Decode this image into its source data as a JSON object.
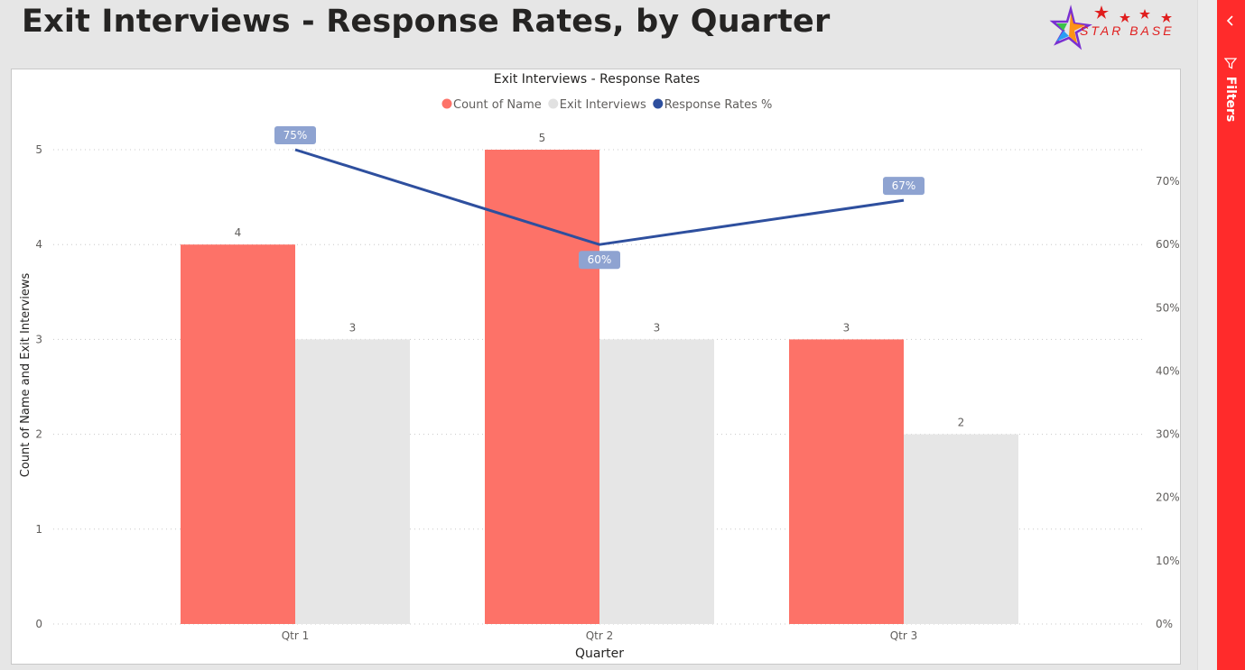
{
  "page": {
    "title": "Exit Interviews - Response Rates, by Quarter",
    "logo_text": "STAR BASE"
  },
  "filters_pane": {
    "label": "Filters",
    "collapse_icon": "chevron-left-icon",
    "filter_icon": "funnel-icon",
    "color": "#ff2b2b"
  },
  "chart_data": {
    "type": "bar",
    "title": "Exit Interviews - Response Rates",
    "xlabel": "Quarter",
    "ylabel": "Count of Name and Exit Interviews",
    "categories": [
      "Qtr 1",
      "Qtr 2",
      "Qtr 3"
    ],
    "ylim": [
      0,
      5
    ],
    "y_ticks": [
      "0",
      "1",
      "2",
      "3",
      "4",
      "5"
    ],
    "y2lim": [
      0,
      0.75
    ],
    "y2_ticks": [
      "0%",
      "10%",
      "20%",
      "30%",
      "40%",
      "50%",
      "60%",
      "70%"
    ],
    "legend_position": "top-center",
    "grid": true,
    "series": [
      {
        "name": "Count of Name",
        "kind": "bar",
        "color": "#fd7268",
        "values": [
          4,
          5,
          3
        ],
        "labels": [
          "4",
          "5",
          "3"
        ]
      },
      {
        "name": "Exit Interviews",
        "kind": "bar",
        "color": "#e6e6e6",
        "values": [
          3,
          3,
          2
        ],
        "labels": [
          "3",
          "3",
          "2"
        ]
      },
      {
        "name": "Response Rates %",
        "kind": "line",
        "axis": "right",
        "color": "#2e4f9e",
        "label_bg": "#8ea3d1",
        "values": [
          0.75,
          0.6,
          0.67
        ],
        "labels": [
          "75%",
          "60%",
          "67%"
        ]
      }
    ]
  }
}
